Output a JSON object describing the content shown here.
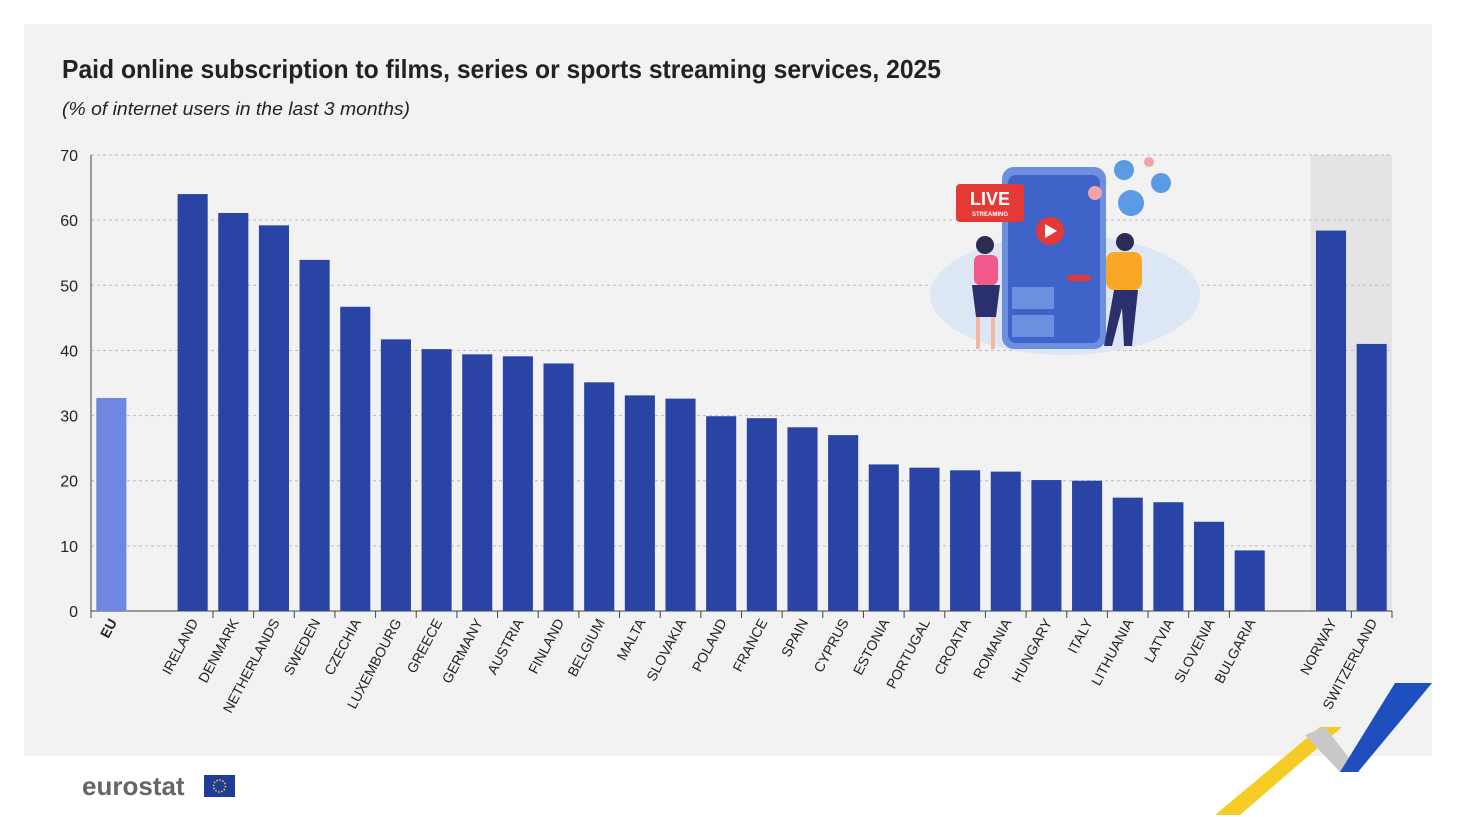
{
  "chart_data": {
    "type": "bar",
    "title": "Paid online subscription to films, series or sports streaming services, 2025",
    "subtitle": "(% of internet users in the last 3 months)",
    "categories": [
      "EU",
      null,
      "IRELAND",
      "DENMARK",
      "NETHERLANDS",
      "SWEDEN",
      "CZECHIA",
      "LUXEMBOURG",
      "GREECE",
      "GERMANY",
      "AUSTRIA",
      "FINLAND",
      "BELGIUM",
      "MALTA",
      "SLOVAKIA",
      "POLAND",
      "FRANCE",
      "SPAIN",
      "CYPRUS",
      "ESTONIA",
      "PORTUGAL",
      "CROATIA",
      "ROMANIA",
      "HUNGARY",
      "ITALY",
      "LITHUANIA",
      "LATVIA",
      "SLOVENIA",
      "BULGARIA",
      null,
      "NORWAY",
      "SWITZERLAND"
    ],
    "values": [
      32.7,
      null,
      64.0,
      61.1,
      59.2,
      53.9,
      46.7,
      41.7,
      40.2,
      39.4,
      39.1,
      38.0,
      35.1,
      33.1,
      32.6,
      29.9,
      29.6,
      28.2,
      27.0,
      22.5,
      22.0,
      21.6,
      21.4,
      20.1,
      20.0,
      17.4,
      16.7,
      13.7,
      9.3,
      null,
      58.4,
      41.0
    ],
    "colors": [
      "#6f87e0",
      null,
      "#2a44a6",
      "#2a44a6",
      "#2a44a6",
      "#2a44a6",
      "#2a44a6",
      "#2a44a6",
      "#2a44a6",
      "#2a44a6",
      "#2a44a6",
      "#2a44a6",
      "#2a44a6",
      "#2a44a6",
      "#2a44a6",
      "#2a44a6",
      "#2a44a6",
      "#2a44a6",
      "#2a44a6",
      "#2a44a6",
      "#2a44a6",
      "#2a44a6",
      "#2a44a6",
      "#2a44a6",
      "#2a44a6",
      "#2a44a6",
      "#2a44a6",
      "#2a44a6",
      "#2a44a6",
      null,
      "#2a44a6",
      "#2a44a6"
    ],
    "ylim": [
      0,
      70
    ],
    "yticks": [
      0,
      10,
      20,
      30,
      40,
      50,
      60,
      70
    ],
    "grid": true
  },
  "illustration": {
    "badge": "LIVE",
    "badge_sub": "STREAMING"
  },
  "logo": "eurostat"
}
